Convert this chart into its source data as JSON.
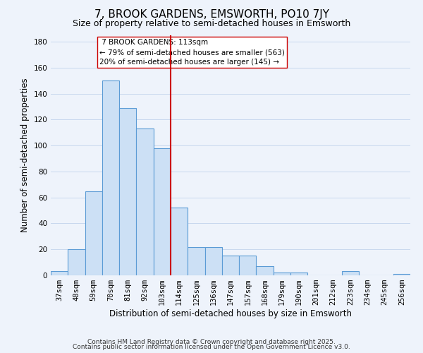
{
  "title": "7, BROOK GARDENS, EMSWORTH, PO10 7JY",
  "subtitle": "Size of property relative to semi-detached houses in Emsworth",
  "xlabel": "Distribution of semi-detached houses by size in Emsworth",
  "ylabel": "Number of semi-detached properties",
  "bin_labels": [
    "37sqm",
    "48sqm",
    "59sqm",
    "70sqm",
    "81sqm",
    "92sqm",
    "103sqm",
    "114sqm",
    "125sqm",
    "136sqm",
    "147sqm",
    "157sqm",
    "168sqm",
    "179sqm",
    "190sqm",
    "201sqm",
    "212sqm",
    "223sqm",
    "234sqm",
    "245sqm",
    "256sqm"
  ],
  "bar_values": [
    3,
    20,
    65,
    150,
    129,
    113,
    98,
    52,
    22,
    22,
    15,
    15,
    7,
    2,
    2,
    0,
    0,
    3,
    0,
    0,
    1
  ],
  "bar_color": "#cce0f5",
  "bar_edge_color": "#5b9bd5",
  "vline_x_index": 7,
  "vline_color": "#cc0000",
  "ylim": [
    0,
    185
  ],
  "yticks": [
    0,
    20,
    40,
    60,
    80,
    100,
    120,
    140,
    160,
    180
  ],
  "annotation_title": "7 BROOK GARDENS: 113sqm",
  "annotation_line1": "← 79% of semi-detached houses are smaller (563)",
  "annotation_line2": "20% of semi-detached houses are larger (145) →",
  "footer1": "Contains HM Land Registry data © Crown copyright and database right 2025.",
  "footer2": "Contains public sector information licensed under the Open Government Licence v3.0.",
  "background_color": "#eef3fb",
  "grid_color": "#c8d8ee",
  "title_fontsize": 11,
  "subtitle_fontsize": 9,
  "axis_label_fontsize": 8.5,
  "tick_fontsize": 7.5,
  "footer_fontsize": 6.5
}
